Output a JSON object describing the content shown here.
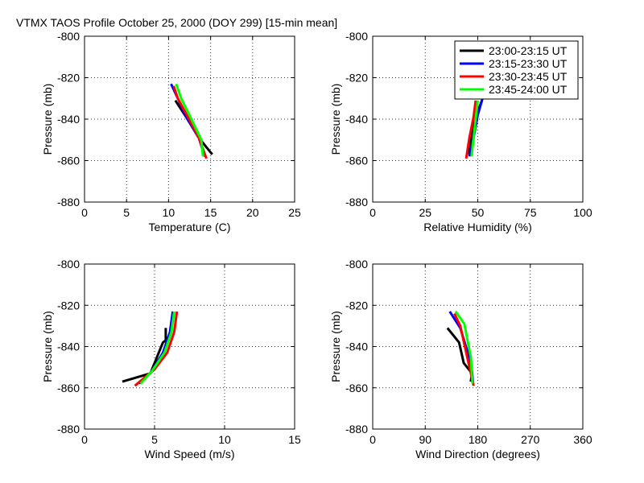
{
  "figure_title": "VTMX TAOS Profile   October 25, 2000 (DOY 299) [15-min mean]",
  "chart_data": [
    {
      "type": "line",
      "xlabel": "Temperature (C)",
      "ylabel": "Pressure (mb)",
      "xlim": [
        0,
        25
      ],
      "ylim": [
        -880,
        -800
      ],
      "xticks": [
        0,
        5,
        10,
        15,
        20,
        25
      ],
      "xtick_labels": [
        "0",
        "5",
        "10",
        "15",
        "20",
        "25"
      ],
      "yticks": [
        -880,
        -860,
        -840,
        -820,
        -800
      ],
      "ytick_labels": [
        "-880",
        "-860",
        "-840",
        "-820",
        "-800"
      ],
      "grid": true,
      "legend": null,
      "series": [
        {
          "name": "23:00-23:15 UT",
          "color": "#000000",
          "points": [
            [
              10.8,
              -831
            ],
            [
              12.1,
              -839
            ],
            [
              13.6,
              -849
            ],
            [
              15.2,
              -857
            ]
          ]
        },
        {
          "name": "23:15-23:30 UT",
          "color": "#0000ff",
          "points": [
            [
              10.3,
              -823
            ],
            [
              11.1,
              -830
            ],
            [
              12.1,
              -839
            ],
            [
              13.6,
              -849
            ],
            [
              14.3,
              -858
            ]
          ]
        },
        {
          "name": "23:30-23:45 UT",
          "color": "#ff0000",
          "points": [
            [
              10.6,
              -824
            ],
            [
              11.1,
              -830
            ],
            [
              12.3,
              -839
            ],
            [
              13.6,
              -849
            ],
            [
              14.5,
              -859
            ]
          ]
        },
        {
          "name": "23:45-24:00 UT",
          "color": "#00ff00",
          "points": [
            [
              10.9,
              -823
            ],
            [
              11.5,
              -830
            ],
            [
              12.6,
              -839
            ],
            [
              13.9,
              -850
            ],
            [
              14.1,
              -858
            ]
          ]
        }
      ]
    },
    {
      "type": "line",
      "xlabel": "Relative Humidity (%)",
      "ylabel": "Pressure (mb)",
      "xlim": [
        0,
        100
      ],
      "ylim": [
        -880,
        -800
      ],
      "xticks": [
        0,
        25,
        50,
        75,
        100
      ],
      "xtick_labels": [
        "0",
        "25",
        "50",
        "75",
        "100"
      ],
      "yticks": [
        -880,
        -860,
        -840,
        -820,
        -800
      ],
      "ytick_labels": [
        "-880",
        "-860",
        "-840",
        "-820",
        "-800"
      ],
      "grid": true,
      "legend": "top-right",
      "series": [
        {
          "name": "23:00-23:15 UT",
          "color": "#000000",
          "points": [
            [
              52,
              -831
            ],
            [
              49,
              -839
            ],
            [
              47,
              -849
            ],
            [
              45,
              -857
            ]
          ]
        },
        {
          "name": "23:15-23:30 UT",
          "color": "#0000ff",
          "points": [
            [
              54,
              -823
            ],
            [
              52,
              -831
            ],
            [
              50,
              -838
            ],
            [
              48,
              -849
            ],
            [
              46,
              -858
            ]
          ]
        },
        {
          "name": "23:30-23:45 UT",
          "color": "#ff0000",
          "points": [
            [
              49,
              -831
            ],
            [
              48,
              -839
            ],
            [
              46,
              -849
            ],
            [
              44.5,
              -859
            ]
          ]
        },
        {
          "name": "23:45-24:00 UT",
          "color": "#00ff00",
          "points": [
            [
              50,
              -831
            ],
            [
              49,
              -840
            ],
            [
              48,
              -849
            ],
            [
              47,
              -858
            ]
          ]
        }
      ]
    },
    {
      "type": "line",
      "xlabel": "Wind Speed (m/s)",
      "ylabel": "Pressure (mb)",
      "xlim": [
        0,
        15
      ],
      "ylim": [
        -880,
        -800
      ],
      "xticks": [
        0,
        5,
        10,
        15
      ],
      "xtick_labels": [
        "0",
        "5",
        "10",
        "15"
      ],
      "yticks": [
        -880,
        -860,
        -840,
        -820,
        -800
      ],
      "ytick_labels": [
        "-880",
        "-860",
        "-840",
        "-820",
        "-800"
      ],
      "grid": true,
      "legend": null,
      "series": [
        {
          "name": "23:00-23:15 UT",
          "color": "#000000",
          "points": [
            [
              5.8,
              -831
            ],
            [
              5.8,
              -837
            ],
            [
              5.6,
              -838
            ],
            [
              4.7,
              -853
            ],
            [
              2.7,
              -857
            ]
          ]
        },
        {
          "name": "23:15-23:30 UT",
          "color": "#0000ff",
          "points": [
            [
              6.3,
              -823
            ],
            [
              6.1,
              -833
            ],
            [
              5.6,
              -843
            ],
            [
              4.8,
              -852
            ],
            [
              3.9,
              -858
            ]
          ]
        },
        {
          "name": "23:30-23:45 UT",
          "color": "#ff0000",
          "points": [
            [
              6.6,
              -823
            ],
            [
              6.4,
              -833
            ],
            [
              5.9,
              -843
            ],
            [
              5.0,
              -851
            ],
            [
              3.6,
              -859
            ]
          ]
        },
        {
          "name": "23:45-24:00 UT",
          "color": "#00ff00",
          "points": [
            [
              6.4,
              -823
            ],
            [
              6.2,
              -833
            ],
            [
              5.7,
              -843
            ],
            [
              4.8,
              -852
            ],
            [
              4.0,
              -858
            ]
          ]
        }
      ]
    },
    {
      "type": "line",
      "xlabel": "Wind Direction (degrees)",
      "ylabel": "Pressure (mb)",
      "xlim": [
        0,
        360
      ],
      "ylim": [
        -880,
        -800
      ],
      "xticks": [
        0,
        90,
        180,
        270,
        360
      ],
      "xtick_labels": [
        "0",
        "90",
        "180",
        "270",
        "360"
      ],
      "yticks": [
        -880,
        -860,
        -840,
        -820,
        -800
      ],
      "ytick_labels": [
        "-880",
        "-860",
        "-840",
        "-820",
        "-800"
      ],
      "grid": true,
      "legend": null,
      "series": [
        {
          "name": "23:00-23:15 UT",
          "color": "#000000",
          "points": [
            [
              128,
              -831
            ],
            [
              148,
              -838
            ],
            [
              156,
              -848
            ],
            [
              170,
              -853
            ],
            [
              168,
              -857
            ]
          ]
        },
        {
          "name": "23:15-23:30 UT",
          "color": "#0000ff",
          "points": [
            [
              132,
              -823
            ],
            [
              150,
              -831
            ],
            [
              163,
              -843
            ],
            [
              170,
              -852
            ],
            [
              172,
              -858
            ]
          ]
        },
        {
          "name": "23:30-23:45 UT",
          "color": "#ff0000",
          "points": [
            [
              140,
              -824
            ],
            [
              150,
              -830
            ],
            [
              165,
              -849
            ],
            [
              173,
              -859
            ]
          ]
        },
        {
          "name": "23:45-24:00 UT",
          "color": "#00ff00",
          "points": [
            [
              142,
              -823
            ],
            [
              157,
              -829
            ],
            [
              168,
              -845
            ],
            [
              171,
              -858
            ]
          ]
        }
      ]
    }
  ]
}
